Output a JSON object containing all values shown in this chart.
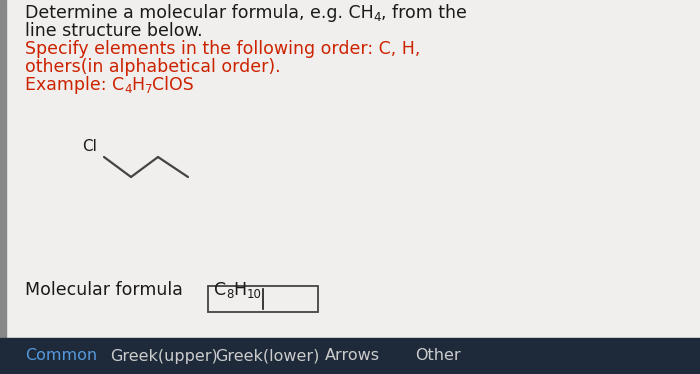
{
  "bg_color": "#dcdcdc",
  "content_bg": "#f0efed",
  "black_color": "#1a1a1a",
  "red_color": "#cc2200",
  "line_color": "#444444",
  "bottom_bar_color": "#1e2a3a",
  "bottom_common_color": "#5599dd",
  "bottom_other_color": "#cccccc",
  "bottom_items": [
    "Common",
    "Greek(upper)",
    "Greek(lower)",
    "Arrows",
    "Other"
  ],
  "font_size_main": 12.5,
  "font_size_sub": 8.5,
  "font_size_bottom": 11.5,
  "figw": 7.0,
  "figh": 3.74,
  "dpi": 100,
  "left_bar_color": "#888888",
  "left_bar_width": 6
}
